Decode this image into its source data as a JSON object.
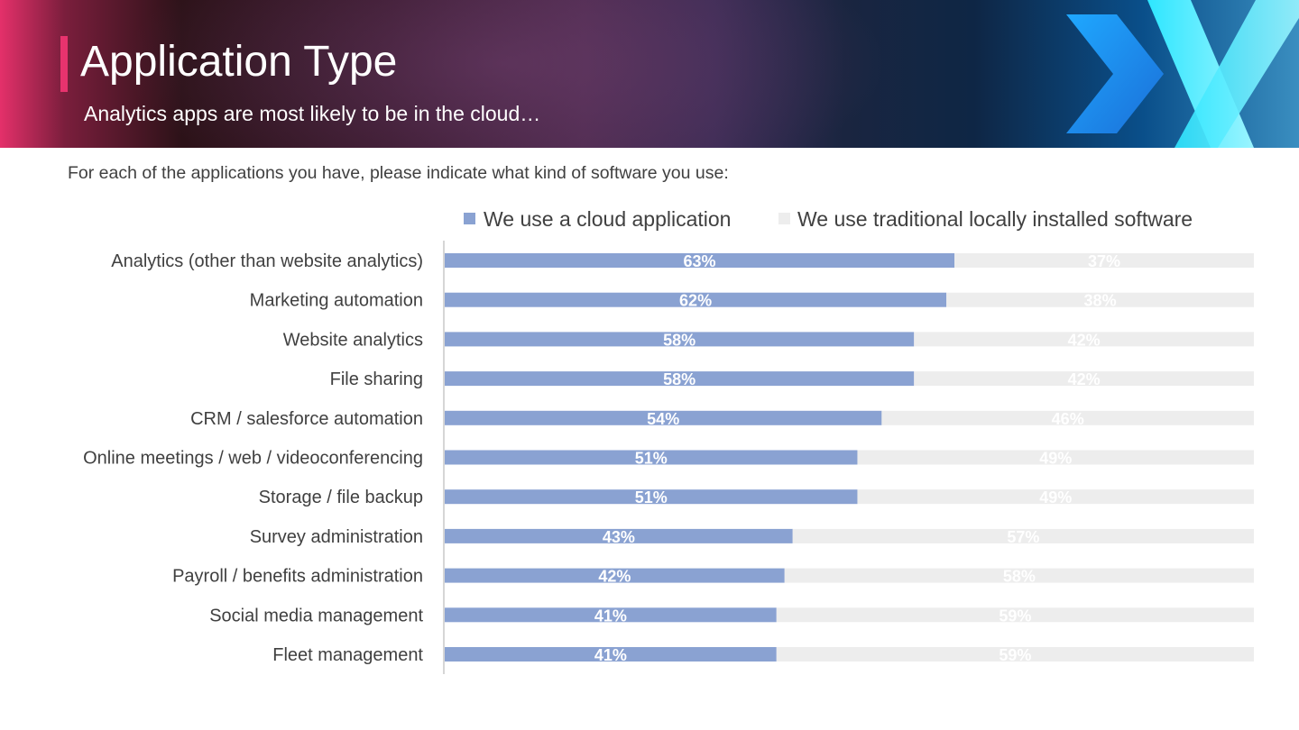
{
  "header": {
    "title": "Application Type",
    "subtitle": "Analytics apps are most likely to be in the cloud…",
    "logo_icon": "brand-chevron-x-logo"
  },
  "question": "For each of the applications you have, please indicate what kind of software you use:",
  "colors": {
    "cloud": "#8aa2d2",
    "local": "#ededed",
    "accent": "#e8336e",
    "axis": "#c8c8c8"
  },
  "chart_data": {
    "type": "bar",
    "orientation": "horizontal",
    "stacked": true,
    "categories": [
      "Analytics (other than website analytics)",
      "Marketing automation",
      "Website analytics",
      "File sharing",
      "CRM / salesforce automation",
      "Online meetings / web / videoconferencing",
      "Storage / file backup",
      "Survey administration",
      "Payroll / benefits administration",
      "Social media management",
      "Fleet management"
    ],
    "series": [
      {
        "name": "We use a cloud application",
        "values": [
          63,
          62,
          58,
          58,
          54,
          51,
          51,
          43,
          42,
          41,
          41
        ],
        "labels": [
          "63%",
          "62%",
          "58%",
          "58%",
          "54%",
          "51%",
          "51%",
          "43%",
          "42%",
          "41%",
          "41%"
        ]
      },
      {
        "name": "We use traditional locally installed software",
        "values": [
          37,
          38,
          42,
          42,
          46,
          49,
          49,
          57,
          58,
          59,
          59
        ],
        "labels": [
          "37%",
          "38%",
          "42%",
          "42%",
          "46%",
          "49%",
          "49%",
          "57%",
          "58%",
          "59%",
          "59%"
        ]
      }
    ],
    "xlim": [
      0,
      100
    ],
    "legend_position": "top-right",
    "grid": false
  }
}
